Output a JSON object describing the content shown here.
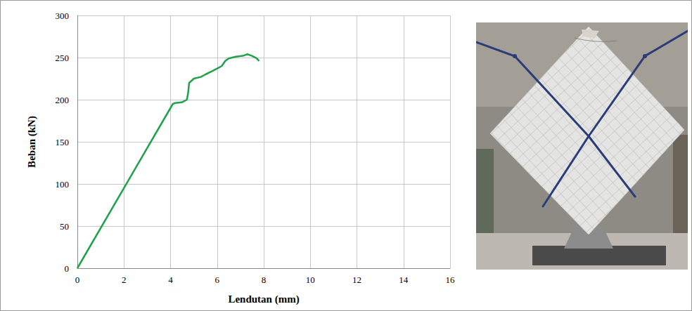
{
  "chart_data": {
    "type": "line",
    "x_label": "Lendutan (mm)",
    "y_label": "Beban (kN)",
    "x": [
      0,
      4.1,
      4.2,
      4.5,
      4.7,
      4.75,
      4.8,
      5.0,
      5.3,
      5.5,
      5.8,
      6.0,
      6.2,
      6.35,
      6.5,
      6.8,
      7.1,
      7.2,
      7.3,
      7.5,
      7.7,
      7.8
    ],
    "values": [
      0,
      195,
      196,
      197,
      200,
      207,
      220,
      225,
      227,
      230,
      234,
      237,
      240,
      246,
      249,
      251,
      252,
      253,
      254,
      252,
      249,
      246
    ],
    "color": "#1ea34b",
    "marker": "none",
    "xlim": [
      0,
      16
    ],
    "xticks": [
      0,
      2,
      4,
      6,
      8,
      10,
      12,
      14,
      16
    ],
    "ylim": [
      0,
      300
    ],
    "yticks": [
      0,
      50,
      100,
      150,
      200,
      250,
      300
    ],
    "grid": true
  }
}
